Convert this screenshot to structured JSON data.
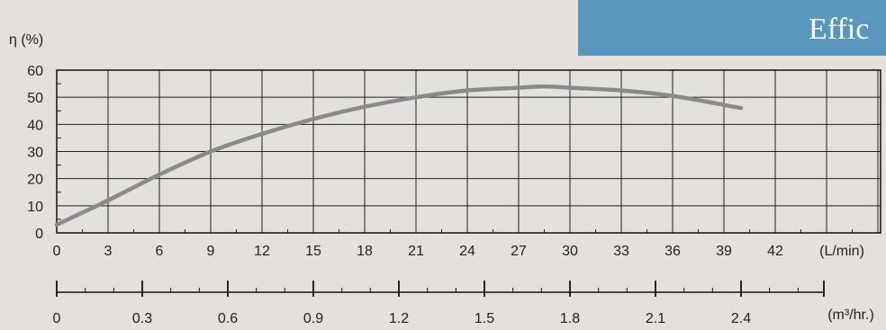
{
  "banner": {
    "text": "Effic",
    "color": "#5a97be"
  },
  "chart_data": {
    "type": "line",
    "ylabel": "η (%)",
    "xlabel": "(L/min)",
    "x2label": "(m³/hr.)",
    "ylim": [
      0,
      60
    ],
    "xlim": [
      0,
      45
    ],
    "y_ticks": [
      0,
      10,
      20,
      30,
      40,
      50,
      60
    ],
    "x_ticks": [
      0,
      3,
      6,
      9,
      12,
      15,
      18,
      21,
      24,
      27,
      30,
      33,
      36,
      39,
      42
    ],
    "x2_ticks": [
      0,
      0.3,
      0.6,
      0.9,
      1.2,
      1.5,
      1.8,
      2.1,
      2.4
    ],
    "x2_ticks_text": [
      "0",
      "0.3",
      "0.6",
      "0.9",
      "1.2",
      "1.5",
      "1.8",
      "2.1",
      "2.4"
    ],
    "grid": true,
    "line_color": "#8a8a8a",
    "series": [
      {
        "x": [
          0,
          3,
          6,
          9,
          12,
          15,
          18,
          21,
          24,
          27,
          28.5,
          30,
          33,
          36,
          40
        ],
        "values": [
          3,
          12,
          21.5,
          30,
          36.5,
          42,
          46.5,
          50,
          52.5,
          53.5,
          54,
          53.5,
          52.5,
          50.5,
          46
        ]
      }
    ]
  }
}
